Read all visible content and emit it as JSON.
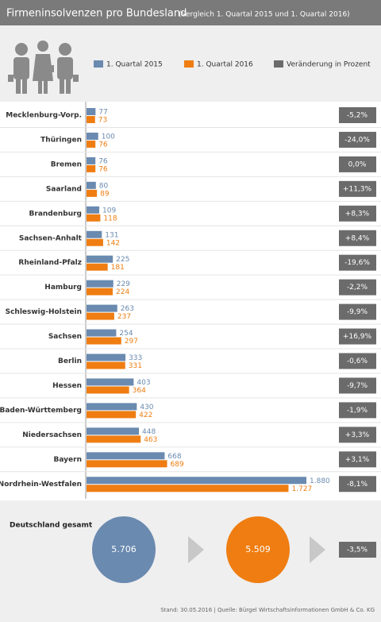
{
  "chart_data": {
    "type": "bar",
    "orientation": "horizontal",
    "title": "Firmeninsolvenzen pro Bundesland",
    "subtitle": "(Vergleich 1. Quartal 2015 und  1. Quartal 2016)",
    "categories": [
      "Mecklenburg-Vorp.",
      "Thüringen",
      "Bremen",
      "Saarland",
      "Brandenburg",
      "Sachsen-Anhalt",
      "Rheinland-Pfalz",
      "Hamburg",
      "Schleswig-Holstein",
      "Sachsen",
      "Berlin",
      "Hessen",
      "Baden-Württemberg",
      "Niedersachsen",
      "Bayern",
      "Nordrhein-Westfalen"
    ],
    "series": [
      {
        "name": "1. Quartal 2015",
        "color": "#6a8ab0",
        "values": [
          77,
          100,
          76,
          80,
          109,
          131,
          225,
          229,
          263,
          254,
          333,
          403,
          430,
          448,
          668,
          1880
        ],
        "value_labels": [
          "77",
          "100",
          "76",
          "80",
          "109",
          "131",
          "225",
          "229",
          "263",
          "254",
          "333",
          "403",
          "430",
          "448",
          "668",
          "1.880"
        ]
      },
      {
        "name": "1. Quartal 2016",
        "color": "#ef7d11",
        "values": [
          73,
          76,
          76,
          89,
          118,
          142,
          181,
          224,
          237,
          297,
          331,
          364,
          422,
          463,
          689,
          1727
        ],
        "value_labels": [
          "73",
          "76",
          "76",
          "89",
          "118",
          "142",
          "181",
          "224",
          "237",
          "297",
          "331",
          "364",
          "422",
          "463",
          "689",
          "1.727"
        ]
      }
    ],
    "change_legend": "Veränderung in Prozent",
    "change_color": "#6b6b6b",
    "changes": [
      "-5,2%",
      "-24,0%",
      "0,0%",
      "+11,3%",
      "+8,3%",
      "+8,4%",
      "-19,6%",
      "-2,2%",
      "-9,9%",
      "+16,9%",
      "-0,6%",
      "-9,7%",
      "-1,9%",
      "+3,3%",
      "+3,1%",
      "-8,1%"
    ],
    "totals": {
      "label": "Deutschland gesamt",
      "values": [
        5706,
        5509
      ],
      "value_labels": [
        "5.706",
        "5.509"
      ],
      "change": "-3,5%"
    },
    "footer": "Stand: 30.05.2016 | Quelle: Bürgel Wirtschaftsinformationen GmbH & Co. KG"
  }
}
